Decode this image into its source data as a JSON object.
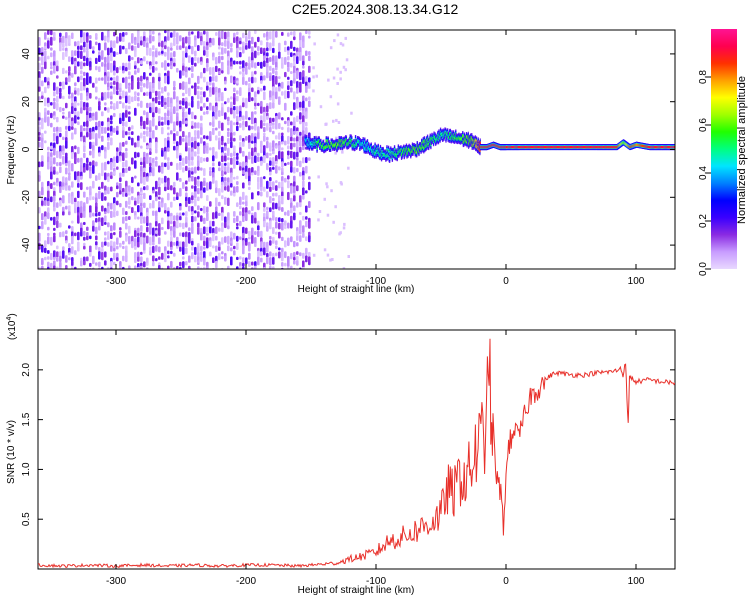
{
  "title": "C2E5.2024.308.13.34.G12",
  "chart_data": [
    {
      "type": "heatmap",
      "name": "spectrogram",
      "xlabel": "Height of straight line (km)",
      "ylabel": "Frequency (Hz)",
      "xlim": [
        -360,
        130
      ],
      "ylim": [
        -50,
        50
      ],
      "xticks": [
        -300,
        -200,
        -100,
        0,
        100
      ],
      "yticks": [
        -40,
        -20,
        0,
        20,
        40
      ],
      "noise_region_x": [
        -360,
        -150
      ],
      "signal_track": {
        "x": [
          -155,
          -145,
          -130,
          -120,
          -110,
          -100,
          -90,
          -80,
          -70,
          -60,
          -50,
          -40,
          -30,
          -25,
          -20,
          -15,
          -10,
          -5,
          0,
          10,
          30,
          50,
          70,
          85,
          90,
          95,
          100,
          110,
          120,
          130
        ],
        "y": [
          3,
          2,
          2,
          3,
          2,
          -1,
          -2,
          -1,
          0,
          3,
          6,
          5,
          4,
          3,
          1,
          1,
          2,
          1,
          1,
          1,
          1,
          1,
          1,
          1,
          3,
          1,
          2,
          1,
          1,
          1
        ],
        "amplitude": [
          0.35,
          0.5,
          0.55,
          0.5,
          0.4,
          0.45,
          0.45,
          0.5,
          0.55,
          0.5,
          0.45,
          0.5,
          0.55,
          0.6,
          0.85,
          0.9,
          0.9,
          0.88,
          0.9,
          0.9,
          0.9,
          0.9,
          0.9,
          0.88,
          0.6,
          0.85,
          0.8,
          0.9,
          0.9,
          0.9
        ]
      },
      "colorbar": {
        "label": "Normalized spectral amplitude",
        "range": [
          0,
          1
        ],
        "ticks": [
          "0.0",
          "0.2",
          "0.4",
          "0.6",
          "0.8"
        ],
        "colors": [
          "#e8d8ff",
          "#c89cff",
          "#8a2be2",
          "#3a00ff",
          "#0000ff",
          "#0080ff",
          "#00e5ff",
          "#00ff80",
          "#20ff00",
          "#a0ff00",
          "#ffff00",
          "#ffa000",
          "#ff3000",
          "#ff0050",
          "#ff1493"
        ]
      }
    },
    {
      "type": "line",
      "name": "snr",
      "xlabel": "Height of straight line (km)",
      "ylabel": "SNR (10 * v/v)",
      "multiplier": "(x10^4)",
      "multiplier_base": "(x10",
      "multiplier_exp": "4",
      "xlim": [
        -360,
        130
      ],
      "ylim": [
        0,
        2.4
      ],
      "xticks": [
        -300,
        -200,
        -100,
        0,
        100
      ],
      "yticks": [
        "0.5",
        "1.0",
        "1.5",
        "2.0"
      ],
      "color": "#e8302a",
      "series": [
        {
          "x": [
            -360,
            -340,
            -320,
            -300,
            -280,
            -260,
            -240,
            -220,
            -200,
            -180,
            -160,
            -140,
            -130,
            -120,
            -110,
            -100,
            -90,
            -80,
            -70,
            -60,
            -50,
            -45,
            -40,
            -35,
            -30,
            -25,
            -20,
            -15,
            -13,
            -11,
            -10,
            -8,
            -6,
            -4,
            -2,
            0,
            2,
            4,
            6,
            8,
            10,
            12,
            15,
            18,
            20,
            25,
            30,
            35,
            40,
            50,
            60,
            70,
            80,
            85,
            88,
            90,
            92,
            93,
            94,
            95,
            96,
            98,
            100,
            110,
            120,
            130
          ],
          "y": [
            0.04,
            0.03,
            0.04,
            0.03,
            0.04,
            0.03,
            0.04,
            0.03,
            0.04,
            0.04,
            0.03,
            0.05,
            0.06,
            0.1,
            0.13,
            0.17,
            0.28,
            0.32,
            0.38,
            0.45,
            0.55,
            0.8,
            0.75,
            0.95,
            0.9,
            1.1,
            1.25,
            1.45,
            2.2,
            1.3,
            1.45,
            1.0,
            0.85,
            0.75,
            0.45,
            0.9,
            1.25,
            1.3,
            1.45,
            1.35,
            1.3,
            1.45,
            1.55,
            1.72,
            1.75,
            1.82,
            1.9,
            1.95,
            1.97,
            1.95,
            1.95,
            1.97,
            1.98,
            1.99,
            2.02,
            1.95,
            2.08,
            1.7,
            1.45,
            1.95,
            1.92,
            1.9,
            1.88,
            1.9,
            1.88,
            1.87
          ]
        }
      ]
    }
  ]
}
